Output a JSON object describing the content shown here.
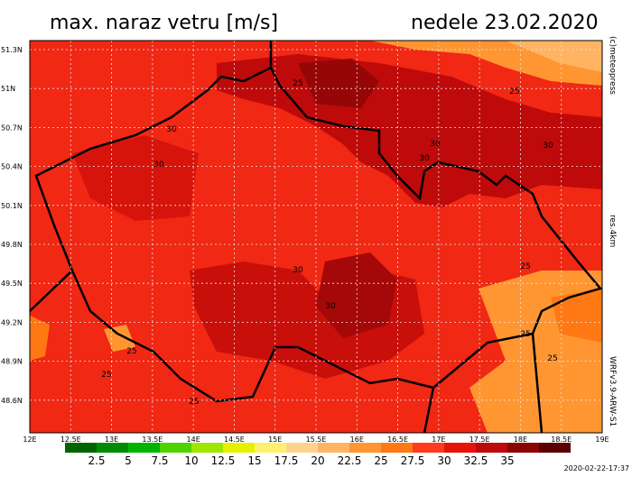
{
  "header": {
    "title": "max. naraz vetru [m/s]",
    "date": "nedele 23.02.2020"
  },
  "map": {
    "lat_labels": [
      "51.3N",
      "51N",
      "50.7N",
      "50.4N",
      "50.1N",
      "49.8N",
      "49.5N",
      "49.2N",
      "48.9N",
      "48.6N"
    ],
    "lon_labels": [
      "12E",
      "12.5E",
      "13E",
      "13.5E",
      "14E",
      "14.5E",
      "15E",
      "15.5E",
      "16E",
      "16.5E",
      "17E",
      "17.5E",
      "18E",
      "18.5E",
      "19E"
    ],
    "contour_labels": [
      "30",
      "25",
      "30",
      "30",
      "30",
      "30",
      "30",
      "25",
      "30",
      "25",
      "25",
      "25",
      "25",
      "25",
      "25"
    ]
  },
  "colorbar": {
    "labels": [
      "2.5",
      "5",
      "7.5",
      "10",
      "12.5",
      "15",
      "17.5",
      "20",
      "22.5",
      "25",
      "27.5",
      "30",
      "32.5",
      "35"
    ],
    "colors": [
      "#006400",
      "#008c00",
      "#00b400",
      "#50d200",
      "#a0e600",
      "#e6f000",
      "#fff06e",
      "#ffd28c",
      "#ffb464",
      "#ff9632",
      "#ff7814",
      "#ff3c1e",
      "#e6140a",
      "#be0a0a",
      "#8c0505",
      "#5a0000"
    ]
  },
  "side": {
    "credit": "(c)meteopress",
    "resolution": "res.4km",
    "model": "WRFv3.9-ARW-S1"
  },
  "timestamp": "2020-02-22-17:37"
}
